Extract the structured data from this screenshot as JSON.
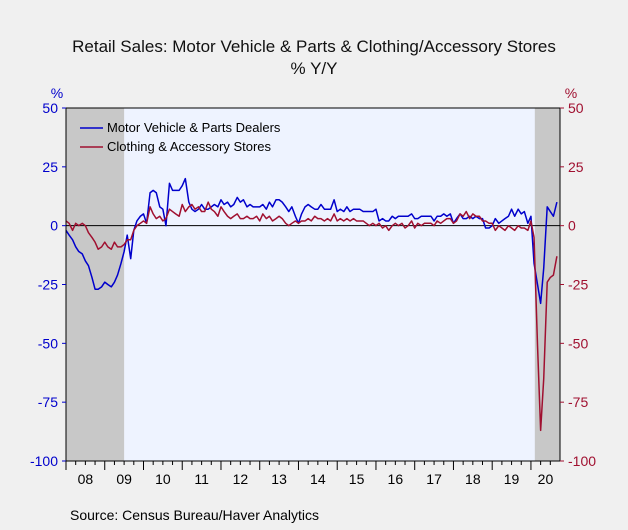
{
  "chart_data": {
    "type": "line",
    "title": "Retail Sales: Motor Vehicle & Parts & Clothing/Accessory Stores",
    "subtitle": "% Y/Y",
    "ylabel_left": "%",
    "ylabel_right": "%",
    "ylim": [
      -100,
      50
    ],
    "yticks": [
      50,
      25,
      0,
      -25,
      -50,
      -75,
      -100
    ],
    "xlim": [
      2008.0,
      2020.75
    ],
    "xtick_labels": [
      "08",
      "09",
      "10",
      "11",
      "12",
      "13",
      "14",
      "15",
      "16",
      "17",
      "18",
      "19",
      "20"
    ],
    "grid": false,
    "legend_placement": "top-left",
    "recessions": [
      [
        2008.0,
        2009.5
      ],
      [
        2020.1,
        2020.75
      ]
    ],
    "colors": {
      "motor": "#0000cc",
      "clothing": "#a01030",
      "left_axis": "#0000cc",
      "right_axis": "#a01030",
      "plot_bg": "#eef3ff",
      "recession": "#c8c8c8"
    },
    "series": [
      {
        "name": "Motor Vehicle & Parts Dealers",
        "key": "motor",
        "points": [
          [
            2008.0,
            -2
          ],
          [
            2008.08,
            -4
          ],
          [
            2008.17,
            -6
          ],
          [
            2008.25,
            -9
          ],
          [
            2008.33,
            -11
          ],
          [
            2008.42,
            -12
          ],
          [
            2008.5,
            -15
          ],
          [
            2008.58,
            -17
          ],
          [
            2008.67,
            -22
          ],
          [
            2008.75,
            -27
          ],
          [
            2008.83,
            -27
          ],
          [
            2008.92,
            -26
          ],
          [
            2009.0,
            -24
          ],
          [
            2009.08,
            -25
          ],
          [
            2009.17,
            -26
          ],
          [
            2009.25,
            -24
          ],
          [
            2009.33,
            -21
          ],
          [
            2009.42,
            -16
          ],
          [
            2009.5,
            -11
          ],
          [
            2009.58,
            -4
          ],
          [
            2009.67,
            -14
          ],
          [
            2009.75,
            -2
          ],
          [
            2009.83,
            2
          ],
          [
            2009.92,
            4
          ],
          [
            2010.0,
            5
          ],
          [
            2010.08,
            1
          ],
          [
            2010.17,
            14
          ],
          [
            2010.25,
            15
          ],
          [
            2010.33,
            14
          ],
          [
            2010.42,
            8
          ],
          [
            2010.5,
            7
          ],
          [
            2010.58,
            0
          ],
          [
            2010.67,
            18
          ],
          [
            2010.75,
            15
          ],
          [
            2010.83,
            15
          ],
          [
            2010.92,
            15
          ],
          [
            2011.0,
            17
          ],
          [
            2011.08,
            20
          ],
          [
            2011.17,
            10
          ],
          [
            2011.25,
            7
          ],
          [
            2011.33,
            6
          ],
          [
            2011.42,
            7
          ],
          [
            2011.5,
            9
          ],
          [
            2011.58,
            7
          ],
          [
            2011.67,
            7
          ],
          [
            2011.75,
            8
          ],
          [
            2011.83,
            9
          ],
          [
            2011.92,
            8
          ],
          [
            2012.0,
            11
          ],
          [
            2012.08,
            9
          ],
          [
            2012.17,
            10
          ],
          [
            2012.25,
            8
          ],
          [
            2012.33,
            9
          ],
          [
            2012.42,
            12
          ],
          [
            2012.5,
            10
          ],
          [
            2012.58,
            11
          ],
          [
            2012.67,
            8
          ],
          [
            2012.75,
            9
          ],
          [
            2012.83,
            8
          ],
          [
            2012.92,
            8
          ],
          [
            2013.0,
            8
          ],
          [
            2013.08,
            9
          ],
          [
            2013.17,
            7
          ],
          [
            2013.25,
            10
          ],
          [
            2013.33,
            8
          ],
          [
            2013.42,
            11
          ],
          [
            2013.5,
            11
          ],
          [
            2013.58,
            10
          ],
          [
            2013.67,
            8
          ],
          [
            2013.75,
            6
          ],
          [
            2013.83,
            8
          ],
          [
            2013.92,
            4
          ],
          [
            2014.0,
            1
          ],
          [
            2014.08,
            5
          ],
          [
            2014.17,
            8
          ],
          [
            2014.25,
            9
          ],
          [
            2014.33,
            8
          ],
          [
            2014.42,
            7
          ],
          [
            2014.5,
            7
          ],
          [
            2014.58,
            9
          ],
          [
            2014.67,
            7
          ],
          [
            2014.75,
            7
          ],
          [
            2014.83,
            7
          ],
          [
            2014.92,
            11
          ],
          [
            2015.0,
            6
          ],
          [
            2015.08,
            7
          ],
          [
            2015.17,
            6
          ],
          [
            2015.25,
            8
          ],
          [
            2015.33,
            6
          ],
          [
            2015.42,
            7
          ],
          [
            2015.5,
            7
          ],
          [
            2015.58,
            7
          ],
          [
            2015.67,
            6
          ],
          [
            2015.75,
            6
          ],
          [
            2015.83,
            6
          ],
          [
            2015.92,
            6
          ],
          [
            2016.0,
            7
          ],
          [
            2016.08,
            2
          ],
          [
            2016.17,
            3
          ],
          [
            2016.25,
            2
          ],
          [
            2016.33,
            2
          ],
          [
            2016.42,
            4
          ],
          [
            2016.5,
            3
          ],
          [
            2016.58,
            4
          ],
          [
            2016.67,
            4
          ],
          [
            2016.75,
            4
          ],
          [
            2016.83,
            4
          ],
          [
            2016.92,
            5
          ],
          [
            2017.0,
            3
          ],
          [
            2017.08,
            3
          ],
          [
            2017.17,
            4
          ],
          [
            2017.25,
            4
          ],
          [
            2017.33,
            4
          ],
          [
            2017.42,
            4
          ],
          [
            2017.5,
            2
          ],
          [
            2017.58,
            4
          ],
          [
            2017.67,
            4
          ],
          [
            2017.75,
            5
          ],
          [
            2017.83,
            4
          ],
          [
            2017.92,
            5
          ],
          [
            2018.0,
            1
          ],
          [
            2018.08,
            3
          ],
          [
            2018.17,
            5
          ],
          [
            2018.25,
            3
          ],
          [
            2018.33,
            3
          ],
          [
            2018.42,
            4
          ],
          [
            2018.5,
            3
          ],
          [
            2018.58,
            4
          ],
          [
            2018.67,
            3
          ],
          [
            2018.75,
            3
          ],
          [
            2018.83,
            -1
          ],
          [
            2018.92,
            -1
          ],
          [
            2019.0,
            0
          ],
          [
            2019.08,
            3
          ],
          [
            2019.17,
            1
          ],
          [
            2019.25,
            2
          ],
          [
            2019.33,
            3
          ],
          [
            2019.42,
            4
          ],
          [
            2019.5,
            7
          ],
          [
            2019.58,
            4
          ],
          [
            2019.67,
            7
          ],
          [
            2019.75,
            5
          ],
          [
            2019.83,
            6
          ],
          [
            2019.92,
            1
          ],
          [
            2020.0,
            4
          ],
          [
            2020.08,
            -16
          ],
          [
            2020.17,
            -25
          ],
          [
            2020.25,
            -33
          ],
          [
            2020.33,
            -18
          ],
          [
            2020.42,
            8
          ],
          [
            2020.5,
            6
          ],
          [
            2020.58,
            4
          ],
          [
            2020.67,
            10
          ]
        ]
      },
      {
        "name": "Clothing & Accessory Stores",
        "key": "clothing",
        "points": [
          [
            2008.0,
            2
          ],
          [
            2008.08,
            1
          ],
          [
            2008.17,
            -2
          ],
          [
            2008.25,
            1
          ],
          [
            2008.33,
            0
          ],
          [
            2008.42,
            1
          ],
          [
            2008.5,
            0
          ],
          [
            2008.58,
            -3
          ],
          [
            2008.67,
            -5
          ],
          [
            2008.75,
            -7
          ],
          [
            2008.83,
            -10
          ],
          [
            2008.92,
            -9
          ],
          [
            2009.0,
            -7
          ],
          [
            2009.08,
            -9
          ],
          [
            2009.17,
            -10
          ],
          [
            2009.25,
            -7
          ],
          [
            2009.33,
            -9
          ],
          [
            2009.42,
            -9
          ],
          [
            2009.5,
            -8
          ],
          [
            2009.58,
            -6
          ],
          [
            2009.67,
            -6
          ],
          [
            2009.75,
            -2
          ],
          [
            2009.83,
            0
          ],
          [
            2009.92,
            1
          ],
          [
            2010.0,
            2
          ],
          [
            2010.08,
            1
          ],
          [
            2010.17,
            8
          ],
          [
            2010.25,
            5
          ],
          [
            2010.33,
            3
          ],
          [
            2010.42,
            4
          ],
          [
            2010.5,
            2
          ],
          [
            2010.58,
            3
          ],
          [
            2010.67,
            7
          ],
          [
            2010.75,
            6
          ],
          [
            2010.83,
            5
          ],
          [
            2010.92,
            4
          ],
          [
            2011.0,
            9
          ],
          [
            2011.08,
            6
          ],
          [
            2011.17,
            8
          ],
          [
            2011.25,
            9
          ],
          [
            2011.33,
            7
          ],
          [
            2011.42,
            8
          ],
          [
            2011.5,
            6
          ],
          [
            2011.58,
            6
          ],
          [
            2011.67,
            10
          ],
          [
            2011.75,
            7
          ],
          [
            2011.83,
            6
          ],
          [
            2011.92,
            4
          ],
          [
            2012.0,
            8
          ],
          [
            2012.08,
            6
          ],
          [
            2012.17,
            4
          ],
          [
            2012.25,
            3
          ],
          [
            2012.33,
            4
          ],
          [
            2012.42,
            5
          ],
          [
            2012.5,
            3
          ],
          [
            2012.58,
            3
          ],
          [
            2012.67,
            4
          ],
          [
            2012.75,
            3
          ],
          [
            2012.83,
            3
          ],
          [
            2012.92,
            4
          ],
          [
            2013.0,
            2
          ],
          [
            2013.08,
            5
          ],
          [
            2013.17,
            3
          ],
          [
            2013.25,
            4
          ],
          [
            2013.33,
            2
          ],
          [
            2013.42,
            3
          ],
          [
            2013.5,
            4
          ],
          [
            2013.58,
            3
          ],
          [
            2013.67,
            1
          ],
          [
            2013.75,
            0
          ],
          [
            2013.83,
            1
          ],
          [
            2013.92,
            2
          ],
          [
            2014.0,
            1
          ],
          [
            2014.08,
            2
          ],
          [
            2014.17,
            2
          ],
          [
            2014.25,
            3
          ],
          [
            2014.33,
            2
          ],
          [
            2014.42,
            4
          ],
          [
            2014.5,
            3
          ],
          [
            2014.58,
            3
          ],
          [
            2014.67,
            2
          ],
          [
            2014.75,
            3
          ],
          [
            2014.83,
            2
          ],
          [
            2014.92,
            5
          ],
          [
            2015.0,
            2
          ],
          [
            2015.08,
            3
          ],
          [
            2015.17,
            2
          ],
          [
            2015.25,
            3
          ],
          [
            2015.33,
            2
          ],
          [
            2015.42,
            3
          ],
          [
            2015.5,
            2
          ],
          [
            2015.58,
            2
          ],
          [
            2015.67,
            2
          ],
          [
            2015.75,
            1
          ],
          [
            2015.83,
            0
          ],
          [
            2015.92,
            1
          ],
          [
            2016.0,
            0
          ],
          [
            2016.08,
            1
          ],
          [
            2016.17,
            -1
          ],
          [
            2016.25,
            0
          ],
          [
            2016.33,
            -2
          ],
          [
            2016.42,
            0
          ],
          [
            2016.5,
            1
          ],
          [
            2016.58,
            0
          ],
          [
            2016.67,
            1
          ],
          [
            2016.75,
            -1
          ],
          [
            2016.83,
            0
          ],
          [
            2016.92,
            2
          ],
          [
            2017.0,
            -1
          ],
          [
            2017.08,
            1
          ],
          [
            2017.17,
            0
          ],
          [
            2017.25,
            1
          ],
          [
            2017.33,
            1
          ],
          [
            2017.42,
            1
          ],
          [
            2017.5,
            0
          ],
          [
            2017.58,
            2
          ],
          [
            2017.67,
            1
          ],
          [
            2017.75,
            2
          ],
          [
            2017.83,
            3
          ],
          [
            2017.92,
            3
          ],
          [
            2018.0,
            1
          ],
          [
            2018.08,
            2
          ],
          [
            2018.17,
            5
          ],
          [
            2018.25,
            4
          ],
          [
            2018.33,
            6
          ],
          [
            2018.42,
            3
          ],
          [
            2018.5,
            5
          ],
          [
            2018.58,
            4
          ],
          [
            2018.67,
            4
          ],
          [
            2018.75,
            2
          ],
          [
            2018.83,
            2
          ],
          [
            2018.92,
            1
          ],
          [
            2019.0,
            1
          ],
          [
            2019.08,
            -2
          ],
          [
            2019.17,
            0
          ],
          [
            2019.25,
            -1
          ],
          [
            2019.33,
            -2
          ],
          [
            2019.42,
            0
          ],
          [
            2019.5,
            -1
          ],
          [
            2019.58,
            -2
          ],
          [
            2019.67,
            0
          ],
          [
            2019.75,
            -1
          ],
          [
            2019.83,
            -1
          ],
          [
            2019.92,
            -2
          ],
          [
            2020.0,
            2
          ],
          [
            2020.08,
            -5
          ],
          [
            2020.17,
            -51
          ],
          [
            2020.25,
            -87
          ],
          [
            2020.33,
            -65
          ],
          [
            2020.42,
            -24
          ],
          [
            2020.5,
            -22
          ],
          [
            2020.58,
            -21
          ],
          [
            2020.67,
            -13
          ]
        ]
      }
    ]
  },
  "source": "Source:   Census Bureau/Haver Analytics"
}
